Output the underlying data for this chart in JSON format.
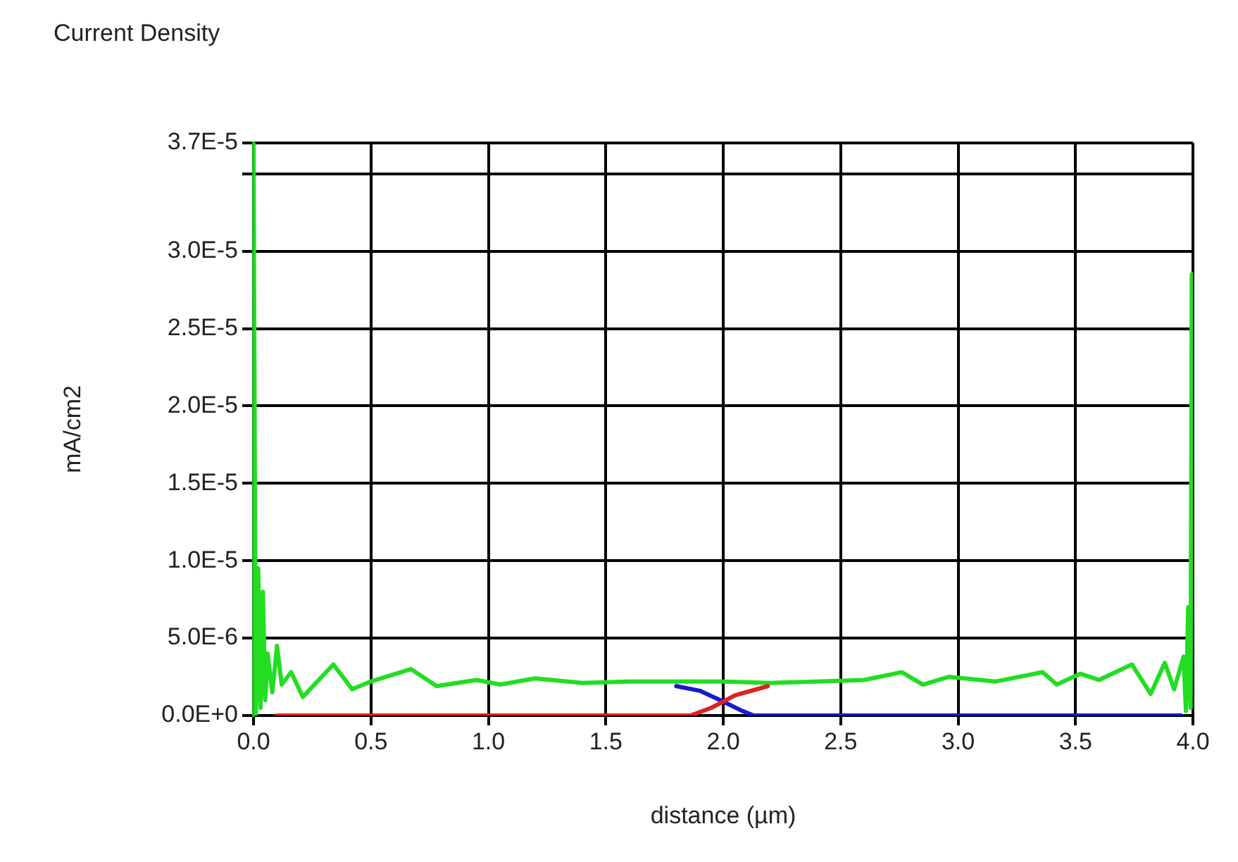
{
  "chart_data": {
    "type": "line",
    "title": "Current Density",
    "xlabel": "distance (µm)",
    "ylabel": "mA/cm2",
    "xlim": [
      0,
      4
    ],
    "xticks": [
      {
        "value": 0,
        "label": "0.0"
      },
      {
        "value": 0.5,
        "label": "0.5"
      },
      {
        "value": 1,
        "label": "1.0"
      },
      {
        "value": 1.5,
        "label": "1.5"
      },
      {
        "value": 2,
        "label": "2.0"
      },
      {
        "value": 2.5,
        "label": "2.5"
      },
      {
        "value": 3,
        "label": "3.0"
      },
      {
        "value": 3.5,
        "label": "3.5"
      },
      {
        "value": 4,
        "label": "4.0"
      }
    ],
    "ylim": [
      0,
      3.7e-05
    ],
    "yticks": [
      {
        "value": 0,
        "label": "0.0E+0"
      },
      {
        "value": 5e-06,
        "label": "5.0E-6"
      },
      {
        "value": 1e-05,
        "label": "1.0E-5"
      },
      {
        "value": 1.5e-05,
        "label": "1.5E-5"
      },
      {
        "value": 2e-05,
        "label": "2.0E-5"
      },
      {
        "value": 2.5e-05,
        "label": "2.5E-5"
      },
      {
        "value": 3e-05,
        "label": "3.0E-5"
      },
      {
        "value": 3.5e-05,
        "label": null
      },
      {
        "value": 3.7e-05,
        "label": "3.7E-5"
      }
    ],
    "grid": true,
    "legend": false,
    "marker": "none",
    "line_style": "solid",
    "series": [
      {
        "color": "#dd2222",
        "x": [
          0.1,
          0.5,
          1.0,
          1.5,
          1.86,
          1.95,
          2.05,
          2.19
        ],
        "values": [
          0,
          0,
          0,
          0,
          0,
          5e-07,
          1.3e-06,
          1.9e-06
        ]
      },
      {
        "color": "#1a1acc",
        "x": [
          1.8,
          1.9,
          2.0,
          2.08,
          2.13,
          2.5,
          3.0,
          3.5,
          3.95
        ],
        "values": [
          1.9e-06,
          1.6e-06,
          9e-07,
          3e-07,
          0,
          0,
          0,
          0,
          0
        ]
      },
      {
        "color": "#22dd22",
        "x": [
          0,
          0.005,
          0.01,
          0.02,
          0.03,
          0.04,
          0.05,
          0.06,
          0.08,
          0.1,
          0.12,
          0.16,
          0.21,
          0.34,
          0.42,
          0.5,
          0.67,
          0.78,
          0.95,
          1.05,
          1.2,
          1.4,
          1.6,
          1.8,
          2.0,
          2.2,
          2.4,
          2.6,
          2.76,
          2.85,
          2.96,
          3.16,
          3.36,
          3.42,
          3.52,
          3.6,
          3.74,
          3.82,
          3.88,
          3.92,
          3.96,
          3.97,
          3.98,
          3.99,
          3.995,
          4.0
        ],
        "values": [
          3.7e-05,
          3.7e-05,
          0,
          9.5e-06,
          5e-07,
          8e-06,
          1e-06,
          4e-06,
          1.5e-06,
          4.5e-06,
          2e-06,
          2.8e-06,
          1.2e-06,
          3.3e-06,
          1.7e-06,
          2.2e-06,
          3e-06,
          1.9e-06,
          2.3e-06,
          2e-06,
          2.4e-06,
          2.1e-06,
          2.2e-06,
          2.2e-06,
          2.2e-06,
          2.1e-06,
          2.2e-06,
          2.3e-06,
          2.8e-06,
          2e-06,
          2.5e-06,
          2.2e-06,
          2.8e-06,
          2e-06,
          2.7e-06,
          2.3e-06,
          3.3e-06,
          1.4e-06,
          3.4e-06,
          1.7e-06,
          3.8e-06,
          3e-07,
          7e-06,
          5e-07,
          2.85e-05,
          2.85e-05
        ]
      }
    ]
  }
}
